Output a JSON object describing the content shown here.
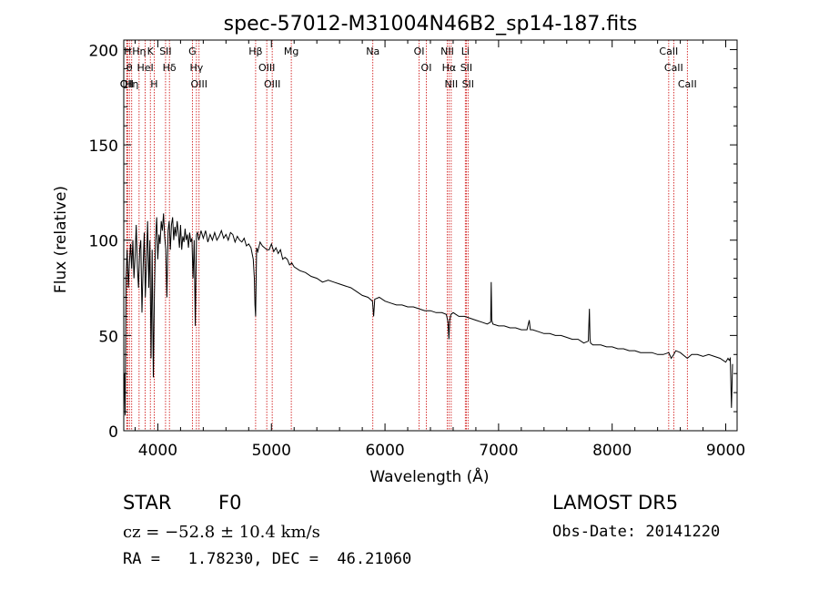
{
  "chart_data": {
    "type": "line",
    "title": "spec-57012-M31004N46B2_sp14-187.fits",
    "xlabel": "Wavelength (Å)",
    "ylabel": "Flux (relative)",
    "xlim": [
      3700,
      9100
    ],
    "ylim": [
      0,
      205
    ],
    "x_ticks": [
      4000,
      5000,
      6000,
      7000,
      8000,
      9000
    ],
    "y_ticks": [
      0,
      50,
      100,
      150,
      200
    ],
    "grid": false,
    "line_color": "#000000",
    "marker_color": "#cc0000",
    "series": [
      {
        "x": [
          3705,
          3712,
          3720,
          3730,
          3740,
          3750,
          3760,
          3770,
          3780,
          3790,
          3800,
          3810,
          3820,
          3830,
          3840,
          3850,
          3860,
          3870,
          3880,
          3890,
          3900,
          3910,
          3920,
          3930,
          3940,
          3950,
          3960,
          3970,
          3980,
          3990,
          4000,
          4010,
          4020,
          4030,
          4040,
          4050,
          4060,
          4070,
          4080,
          4090,
          4100,
          4110,
          4120,
          4130,
          4140,
          4150,
          4160,
          4170,
          4180,
          4190,
          4200,
          4210,
          4220,
          4230,
          4240,
          4250,
          4260,
          4270,
          4280,
          4290,
          4300,
          4310,
          4320,
          4330,
          4340,
          4350,
          4360,
          4370,
          4380,
          4400,
          4420,
          4440,
          4460,
          4480,
          4500,
          4520,
          4540,
          4560,
          4580,
          4600,
          4620,
          4640,
          4660,
          4680,
          4700,
          4720,
          4740,
          4760,
          4780,
          4800,
          4820,
          4840,
          4850,
          4855,
          4861,
          4866,
          4870,
          4880,
          4900,
          4920,
          4940,
          4960,
          4980,
          5000,
          5020,
          5040,
          5060,
          5080,
          5100,
          5120,
          5140,
          5160,
          5180,
          5200,
          5250,
          5300,
          5350,
          5400,
          5450,
          5500,
          5550,
          5600,
          5650,
          5700,
          5750,
          5800,
          5850,
          5890,
          5900,
          5910,
          5950,
          6000,
          6050,
          6100,
          6150,
          6200,
          6250,
          6300,
          6350,
          6400,
          6450,
          6500,
          6540,
          6555,
          6563,
          6570,
          6580,
          6600,
          6650,
          6700,
          6750,
          6800,
          6850,
          6900,
          6930,
          6935,
          6940,
          6950,
          7000,
          7050,
          7100,
          7150,
          7200,
          7250,
          7270,
          7280,
          7300,
          7350,
          7400,
          7450,
          7500,
          7550,
          7600,
          7650,
          7700,
          7750,
          7790,
          7800,
          7805,
          7810,
          7830,
          7900,
          7950,
          8000,
          8050,
          8100,
          8150,
          8200,
          8250,
          8300,
          8350,
          8400,
          8450,
          8498,
          8520,
          8542,
          8560,
          8600,
          8662,
          8700,
          8750,
          8800,
          8850,
          8900,
          8950,
          9000,
          9020,
          9030,
          9040,
          9050,
          9060
        ],
        "values": [
          30,
          8,
          80,
          95,
          75,
          88,
          98,
          85,
          100,
          80,
          92,
          108,
          86,
          75,
          95,
          100,
          62,
          85,
          104,
          70,
          90,
          110,
          75,
          100,
          38,
          95,
          28,
          72,
          100,
          112,
          90,
          103,
          98,
          110,
          105,
          114,
          102,
          95,
          70,
          105,
          110,
          95,
          108,
          112,
          100,
          107,
          102,
          110,
          104,
          96,
          108,
          95,
          102,
          99,
          106,
          100,
          103,
          96,
          104,
          99,
          101,
          80,
          100,
          55,
          103,
          104,
          100,
          102,
          105,
          101,
          105,
          99,
          103,
          100,
          104,
          100,
          102,
          105,
          101,
          103,
          100,
          104,
          103,
          99,
          102,
          100,
          99,
          101,
          97,
          98,
          96,
          90,
          80,
          66,
          60,
          80,
          96,
          94,
          99,
          97,
          96,
          95,
          95,
          98,
          94,
          96,
          93,
          95,
          90,
          91,
          90,
          87,
          88,
          86,
          84,
          83,
          81,
          80,
          78,
          79,
          78,
          77,
          76,
          75,
          73,
          71,
          70,
          68,
          60,
          69,
          70,
          68,
          67,
          66,
          66,
          65,
          65,
          64,
          63,
          63,
          62,
          62,
          61,
          57,
          48,
          58,
          61,
          62,
          60,
          60,
          59,
          58,
          57,
          56,
          57,
          78,
          58,
          56,
          55,
          55,
          54,
          54,
          53,
          53,
          58,
          53,
          53,
          52,
          51,
          51,
          50,
          50,
          49,
          48,
          48,
          46,
          47,
          64,
          48,
          46,
          45,
          45,
          44,
          44,
          43,
          43,
          42,
          42,
          41,
          41,
          41,
          40,
          40,
          41,
          38,
          40,
          42,
          41,
          38,
          40,
          40,
          39,
          40,
          39,
          38,
          36,
          38,
          37,
          38,
          12,
          35
        ]
      }
    ],
    "line_markers": [
      {
        "x": 3734,
        "label": "H"
      },
      {
        "x": 3750,
        "label": "θ"
      },
      {
        "x": 3727,
        "label": "OII"
      },
      {
        "x": 3727,
        "label": "OII"
      },
      {
        "x": 3770,
        "label": "Hη"
      },
      {
        "x": 3835,
        "label": "Hη"
      },
      {
        "x": 3889,
        "label": "HeI"
      },
      {
        "x": 3934,
        "label": "K"
      },
      {
        "x": 3968,
        "label": "H"
      },
      {
        "x": 4068,
        "label": "SII"
      },
      {
        "x": 4102,
        "label": "Hδ"
      },
      {
        "x": 4304,
        "label": "G"
      },
      {
        "x": 4340,
        "label": "Hγ"
      },
      {
        "x": 4363,
        "label": "OIII"
      },
      {
        "x": 4861,
        "label": "Hβ"
      },
      {
        "x": 4959,
        "label": "OIII"
      },
      {
        "x": 5007,
        "label": "OIII"
      },
      {
        "x": 5175,
        "label": "Mg"
      },
      {
        "x": 5893,
        "label": "Na"
      },
      {
        "x": 6300,
        "label": "OI"
      },
      {
        "x": 6364,
        "label": "OI"
      },
      {
        "x": 6548,
        "label": "NII"
      },
      {
        "x": 6563,
        "label": "Hα"
      },
      {
        "x": 6583,
        "label": "NII"
      },
      {
        "x": 6707,
        "label": "Li"
      },
      {
        "x": 6716,
        "label": "SII"
      },
      {
        "x": 6731,
        "label": "SII"
      },
      {
        "x": 8498,
        "label": "CaII"
      },
      {
        "x": 8542,
        "label": "CaII"
      },
      {
        "x": 8662,
        "label": "CaII"
      }
    ]
  },
  "info": {
    "object_class": "STAR",
    "subclass": "F0",
    "survey": "LAMOST DR5",
    "cz": "cz = −52.8 ± 10.4 km/s",
    "obs_date": "Obs-Date: 20141220",
    "coords": "RA =   1.78230, DEC =  46.21060"
  }
}
